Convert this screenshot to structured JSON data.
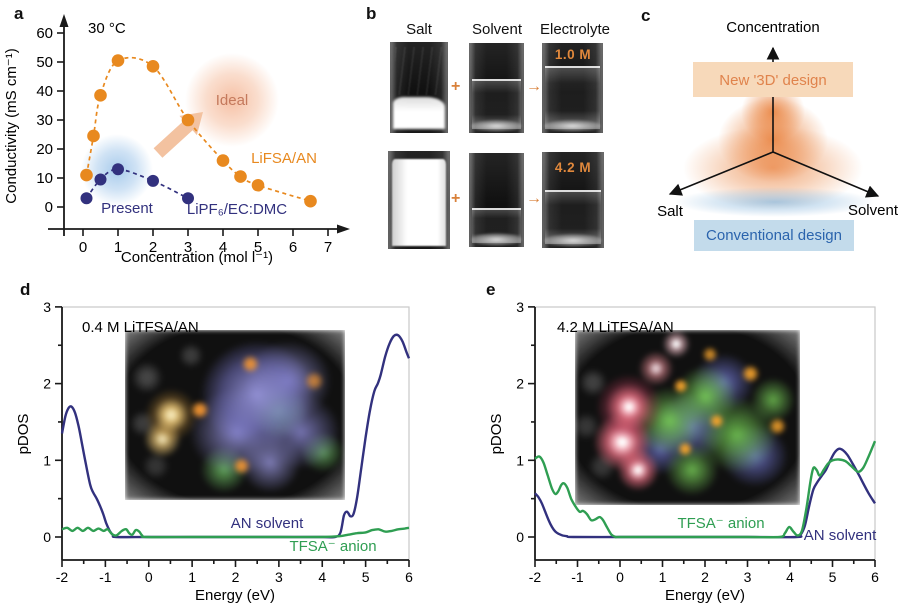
{
  "panels": {
    "a": {
      "letter": "a"
    },
    "b": {
      "letter": "b",
      "columns": [
        "Salt",
        "Solvent",
        "Electrolyte"
      ],
      "plus": "+",
      "arrow": "→",
      "molarity_top": "1.0 M",
      "molarity_bottom": "4.2 M"
    },
    "c": {
      "letter": "c",
      "axis_top": "Concentration",
      "axis_left": "Salt",
      "axis_right": "Solvent",
      "box_new": "New '3D' design",
      "box_conventional": "Conventional design"
    },
    "d": {
      "letter": "d"
    },
    "e": {
      "letter": "e"
    }
  },
  "colors": {
    "orange_series": "#e8891f",
    "navy_series": "#32317e",
    "green_series": "#2f9e52",
    "ideal_text": "#c4795c",
    "new_design_box": "#f7d9ba",
    "new_design_text": "#e0834c",
    "conventional_box": "#c3dbeb",
    "conventional_text": "#2b64ad",
    "molarity_text": "#e0883c"
  },
  "chart_data": [
    {
      "id": "a",
      "type": "scatter-line",
      "note": "30 °C",
      "xlabel": "Concentration (mol l⁻¹)",
      "ylabel": "Conductivity (mS cm⁻¹)",
      "xlim": [
        0,
        7
      ],
      "ylim": [
        0,
        60
      ],
      "xticks": [
        0,
        1,
        2,
        3,
        4,
        5,
        6,
        7
      ],
      "yticks": [
        0,
        10,
        20,
        30,
        40,
        50,
        60
      ],
      "grid": false,
      "series": [
        {
          "name": "LiFSA/AN",
          "color": "#e8891f",
          "line": "dashed",
          "points": [
            [
              0.1,
              11
            ],
            [
              0.3,
              24.5
            ],
            [
              0.5,
              38.5
            ],
            [
              1,
              50.5
            ],
            [
              2,
              48.5
            ],
            [
              3,
              30
            ],
            [
              4,
              16
            ],
            [
              4.5,
              10.5
            ],
            [
              5,
              7.5
            ],
            [
              6.5,
              2
            ]
          ]
        },
        {
          "name": "LiPF₆/EC:DMC",
          "color": "#32317e",
          "line": "dashed",
          "points": [
            [
              0.1,
              3
            ],
            [
              0.5,
              9.5
            ],
            [
              1,
              13
            ],
            [
              2,
              9
            ],
            [
              3,
              3
            ]
          ]
        }
      ],
      "annotations": [
        {
          "text": "Ideal",
          "color": "#c4795c"
        },
        {
          "text": "Present",
          "color": "#32317e"
        }
      ]
    },
    {
      "id": "d",
      "type": "line",
      "title": "0.4 M LiTFSA/AN",
      "xlabel": "Energy (eV)",
      "ylabel": "pDOS",
      "xlim": [
        -2,
        6
      ],
      "ylim": [
        0,
        3
      ],
      "xticks": [
        -2,
        -1,
        0,
        1,
        2,
        3,
        4,
        5,
        6
      ],
      "yticks": [
        0,
        1,
        2,
        3
      ],
      "grid": false,
      "series": [
        {
          "name": "AN solvent",
          "color": "#32317e",
          "points": [
            [
              -2,
              1.35
            ],
            [
              -1.92,
              1.58
            ],
            [
              -1.85,
              1.68
            ],
            [
              -1.78,
              1.7
            ],
            [
              -1.7,
              1.62
            ],
            [
              -1.62,
              1.45
            ],
            [
              -1.55,
              1.25
            ],
            [
              -1.45,
              0.95
            ],
            [
              -1.35,
              0.68
            ],
            [
              -1.28,
              0.58
            ],
            [
              -1.2,
              0.5
            ],
            [
              -1.12,
              0.4
            ],
            [
              -1.05,
              0.3
            ],
            [
              -0.98,
              0.18
            ],
            [
              -0.9,
              0.08
            ],
            [
              -0.82,
              0.02
            ],
            [
              -0.75,
              0
            ],
            [
              0,
              0
            ],
            [
              1,
              0
            ],
            [
              2,
              0
            ],
            [
              3,
              0
            ],
            [
              4,
              0
            ],
            [
              4.3,
              0
            ],
            [
              4.42,
              0.06
            ],
            [
              4.5,
              0.28
            ],
            [
              4.57,
              0.33
            ],
            [
              4.65,
              0.27
            ],
            [
              4.72,
              0.3
            ],
            [
              4.8,
              0.5
            ],
            [
              4.9,
              0.9
            ],
            [
              5,
              1.3
            ],
            [
              5.1,
              1.65
            ],
            [
              5.2,
              1.9
            ],
            [
              5.28,
              2
            ],
            [
              5.35,
              2.12
            ],
            [
              5.45,
              2.35
            ],
            [
              5.55,
              2.52
            ],
            [
              5.65,
              2.62
            ],
            [
              5.75,
              2.63
            ],
            [
              5.85,
              2.55
            ],
            [
              5.95,
              2.4
            ],
            [
              6,
              2.33
            ]
          ]
        },
        {
          "name": "TFSA⁻ anion",
          "color": "#2f9e52",
          "points": [
            [
              -2,
              0.1
            ],
            [
              -1.88,
              0.12
            ],
            [
              -1.76,
              0.08
            ],
            [
              -1.64,
              0.12
            ],
            [
              -1.52,
              0.08
            ],
            [
              -1.4,
              0.12
            ],
            [
              -1.28,
              0.08
            ],
            [
              -1.16,
              0.11
            ],
            [
              -1.04,
              0.08
            ],
            [
              -0.95,
              0.1
            ],
            [
              -0.85,
              0.04
            ],
            [
              -0.75,
              0.02
            ],
            [
              -0.62,
              0.08
            ],
            [
              -0.52,
              0.1
            ],
            [
              -0.45,
              0.05
            ],
            [
              -0.38,
              0.03
            ],
            [
              -0.3,
              0.09
            ],
            [
              -0.22,
              0.07
            ],
            [
              -0.15,
              0.02
            ],
            [
              -0.05,
              0
            ],
            [
              1,
              0
            ],
            [
              2,
              0
            ],
            [
              3,
              0
            ],
            [
              4,
              0
            ],
            [
              4.4,
              0.01
            ],
            [
              4.6,
              0.03
            ],
            [
              4.8,
              0.05
            ],
            [
              5,
              0.06
            ],
            [
              5.15,
              0.09
            ],
            [
              5.3,
              0.1
            ],
            [
              5.45,
              0.07
            ],
            [
              5.6,
              0.08
            ],
            [
              5.75,
              0.1
            ],
            [
              5.9,
              0.11
            ],
            [
              6,
              0.12
            ]
          ]
        }
      ]
    },
    {
      "id": "e",
      "type": "line",
      "title": "4.2 M LiTFSA/AN",
      "xlabel": "Energy (eV)",
      "ylabel": "pDOS",
      "xlim": [
        -2,
        6
      ],
      "ylim": [
        0,
        3
      ],
      "xticks": [
        -2,
        -1,
        0,
        1,
        2,
        3,
        4,
        5,
        6
      ],
      "yticks": [
        0,
        1,
        2,
        3
      ],
      "grid": false,
      "series": [
        {
          "name": "AN solvent",
          "color": "#32317e",
          "points": [
            [
              -2,
              0.57
            ],
            [
              -1.92,
              0.52
            ],
            [
              -1.84,
              0.44
            ],
            [
              -1.76,
              0.33
            ],
            [
              -1.68,
              0.22
            ],
            [
              -1.6,
              0.13
            ],
            [
              -1.52,
              0.07
            ],
            [
              -1.44,
              0.04
            ],
            [
              -1.35,
              0.02
            ],
            [
              -1.25,
              0.01
            ],
            [
              -1.1,
              0
            ],
            [
              0,
              0
            ],
            [
              1,
              0
            ],
            [
              2,
              0
            ],
            [
              3,
              0
            ],
            [
              4.15,
              0
            ],
            [
              4.25,
              0.03
            ],
            [
              4.35,
              0.15
            ],
            [
              4.45,
              0.4
            ],
            [
              4.55,
              0.62
            ],
            [
              4.65,
              0.72
            ],
            [
              4.75,
              0.8
            ],
            [
              4.85,
              0.88
            ],
            [
              4.95,
              1
            ],
            [
              5.05,
              1.1
            ],
            [
              5.15,
              1.15
            ],
            [
              5.25,
              1.13
            ],
            [
              5.35,
              1.07
            ],
            [
              5.45,
              0.98
            ],
            [
              5.55,
              0.88
            ],
            [
              5.65,
              0.78
            ],
            [
              5.75,
              0.67
            ],
            [
              5.85,
              0.57
            ],
            [
              5.95,
              0.48
            ],
            [
              6,
              0.44
            ]
          ]
        },
        {
          "name": "TFSA⁻ anion",
          "color": "#2f9e52",
          "points": [
            [
              -2,
              1.02
            ],
            [
              -1.9,
              1.05
            ],
            [
              -1.8,
              0.97
            ],
            [
              -1.7,
              0.8
            ],
            [
              -1.6,
              0.63
            ],
            [
              -1.52,
              0.56
            ],
            [
              -1.45,
              0.6
            ],
            [
              -1.38,
              0.68
            ],
            [
              -1.32,
              0.7
            ],
            [
              -1.24,
              0.64
            ],
            [
              -1.15,
              0.5
            ],
            [
              -1.05,
              0.4
            ],
            [
              -0.95,
              0.33
            ],
            [
              -0.87,
              0.34
            ],
            [
              -0.78,
              0.3
            ],
            [
              -0.68,
              0.22
            ],
            [
              -0.58,
              0.23
            ],
            [
              -0.48,
              0.26
            ],
            [
              -0.4,
              0.22
            ],
            [
              -0.3,
              0.12
            ],
            [
              -0.2,
              0.03
            ],
            [
              -0.1,
              0
            ],
            [
              0,
              0
            ],
            [
              1,
              0
            ],
            [
              2,
              0
            ],
            [
              3,
              0
            ],
            [
              3.75,
              0
            ],
            [
              3.88,
              0.05
            ],
            [
              3.98,
              0.13
            ],
            [
              4.08,
              0.07
            ],
            [
              4.18,
              0.02
            ],
            [
              4.28,
              0.08
            ],
            [
              4.38,
              0.35
            ],
            [
              4.48,
              0.72
            ],
            [
              4.55,
              0.9
            ],
            [
              4.63,
              0.87
            ],
            [
              4.7,
              0.8
            ],
            [
              4.8,
              0.88
            ],
            [
              4.9,
              0.96
            ],
            [
              5,
              1
            ],
            [
              5.15,
              1.01
            ],
            [
              5.3,
              0.99
            ],
            [
              5.45,
              0.92
            ],
            [
              5.6,
              0.85
            ],
            [
              5.72,
              0.9
            ],
            [
              5.85,
              1.05
            ],
            [
              6,
              1.25
            ]
          ]
        }
      ]
    }
  ]
}
